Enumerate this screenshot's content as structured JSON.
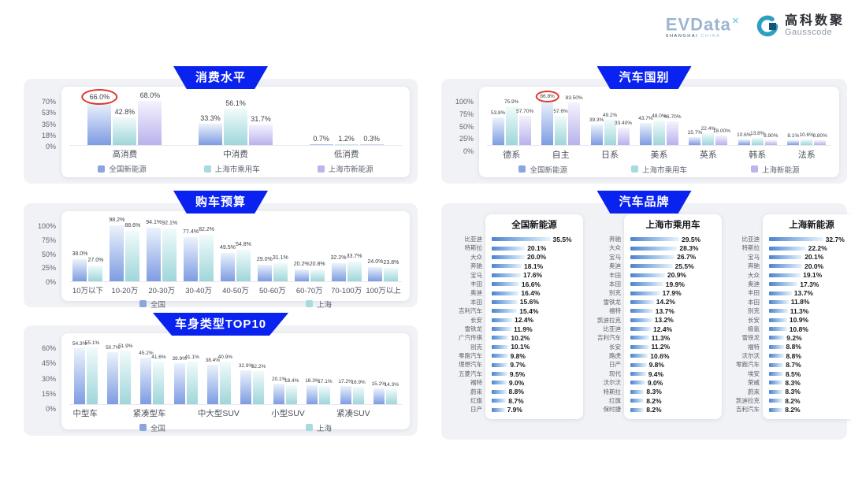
{
  "header": {
    "evdata_logo": "EVData",
    "evdata_sup": "✕",
    "evdata_sub_1": "SHANGHAI",
    "evdata_sub_2": "CHINA",
    "gausscode_cn": "高科数聚",
    "gausscode_en": "Gausscode"
  },
  "palette": {
    "badge_blue": "#0a22f0",
    "annotation_red": "#e0372c",
    "hbar_from": "#4d82cc",
    "hbar_to": "#e9f4fd",
    "blue": {
      "lo": "#7e9ce2",
      "hi": "#ecf3fc",
      "mid": "#8aa6de"
    },
    "teal": {
      "lo": "#9fd6da",
      "hi": "#f1fbfb",
      "mid": "#a9dade"
    },
    "purple": {
      "lo": "#b9b2ec",
      "hi": "#f5f3fe",
      "mid": "#bcb5ec"
    }
  },
  "chart_data": [
    {
      "type": "bar",
      "title": "消费水平",
      "categories": [
        "高消费",
        "中消费",
        "低消费"
      ],
      "ymax": 70,
      "yticks": [
        "70%",
        "53%",
        "35%",
        "18%",
        "0%"
      ],
      "legend_position": "bottom",
      "series": [
        {
          "name": "全国新能源",
          "palette": "blue",
          "dp": 1,
          "values": [
            66.0,
            33.3,
            0.7
          ]
        },
        {
          "name": "上海市乘用车",
          "palette": "teal",
          "dp": 1,
          "values": [
            42.8,
            56.1,
            1.2
          ]
        },
        {
          "name": "上海市新能源",
          "palette": "purple",
          "dp": 1,
          "values": [
            68.0,
            31.7,
            0.3
          ]
        }
      ],
      "annotations": [
        {
          "type": "red-circle",
          "series": 0,
          "category": 0
        }
      ]
    },
    {
      "type": "bar",
      "title": "汽车国别",
      "categories": [
        "德系",
        "自主",
        "日系",
        "美系",
        "英系",
        "韩系",
        "法系"
      ],
      "ymax": 100,
      "yticks": [
        "100%",
        "75%",
        "50%",
        "25%",
        "0%"
      ],
      "legend_position": "bottom",
      "series": [
        {
          "name": "全国新能源",
          "palette": "blue",
          "dp": 1,
          "values": [
            53.8,
            86.8,
            39.3,
            43.7,
            15.7,
            10.6,
            8.1
          ]
        },
        {
          "name": "上海市乘用车",
          "palette": "teal",
          "dp": 1,
          "values": [
            75.9,
            57.6,
            49.2,
            48.0,
            22.4,
            13.8,
            10.6
          ]
        },
        {
          "name": "上海新能源",
          "palette": "purple",
          "dp": 2,
          "values": [
            57.7,
            83.5,
            33.4,
            46.7,
            18.0,
            8.9,
            8.8
          ]
        }
      ],
      "annotations": [
        {
          "type": "red-circle",
          "series": 0,
          "category": 1
        }
      ]
    },
    {
      "type": "bar",
      "title": "购车预算",
      "categories": [
        "10万以下",
        "10-20万",
        "20-30万",
        "30-40万",
        "40-50万",
        "50-60万",
        "60-70万",
        "70-100万",
        "100万以上"
      ],
      "ymax": 100,
      "yticks": [
        "100%",
        "75%",
        "50%",
        "25%",
        "0%"
      ],
      "legend_position": "bottom",
      "series": [
        {
          "name": "全国",
          "palette": "blue",
          "dp": 1,
          "values": [
            38.0,
            98.2,
            94.1,
            77.4,
            49.5,
            29.0,
            20.2,
            32.2,
            24.0
          ]
        },
        {
          "name": "上海",
          "palette": "teal",
          "dp": 1,
          "values": [
            27.0,
            88.6,
            92.1,
            82.2,
            54.8,
            31.1,
            20.8,
            33.7,
            23.8
          ]
        }
      ],
      "annotations": []
    },
    {
      "type": "bar",
      "title": "车身类型TOP10",
      "categories": [
        "中型车",
        "",
        "紧凑型车",
        "",
        "中大型SUV",
        "",
        "小型SUV",
        "",
        "紧凑SUV",
        ""
      ],
      "ymax": 60,
      "yticks": [
        "60%",
        "45%",
        "30%",
        "15%",
        "0%"
      ],
      "legend_position": "bottom",
      "series": [
        {
          "name": "全国",
          "palette": "blue",
          "dp": 1,
          "values": [
            54.3,
            50.7,
            45.2,
            39.9,
            38.4,
            32.9,
            20.1,
            18.3,
            17.2,
            15.2
          ]
        },
        {
          "name": "上海",
          "palette": "teal",
          "dp": 1,
          "values": [
            55.1,
            51.9,
            41.6,
            41.1,
            40.9,
            32.2,
            18.4,
            17.1,
            16.9,
            14.3
          ]
        }
      ],
      "annotations": []
    },
    {
      "type": "bar-horizontal-triple",
      "title": "汽车品牌",
      "lists": [
        {
          "title": "全国新能源",
          "items": [
            [
              "比亚迪",
              35.5
            ],
            [
              "特斯拉",
              20.1
            ],
            [
              "大众",
              20.0
            ],
            [
              "奔驰",
              18.1
            ],
            [
              "宝马",
              17.6
            ],
            [
              "丰田",
              16.6
            ],
            [
              "奥迪",
              16.4
            ],
            [
              "本田",
              15.6
            ],
            [
              "吉利汽车",
              15.4
            ],
            [
              "长安",
              12.4
            ],
            [
              "雪铁龙",
              11.9
            ],
            [
              "广汽传祺",
              10.2
            ],
            [
              "别克",
              10.1
            ],
            [
              "零跑汽车",
              9.8
            ],
            [
              "理想汽车",
              9.7
            ],
            [
              "五菱汽车",
              9.5
            ],
            [
              "福特",
              9.0
            ],
            [
              "蔚来",
              8.8
            ],
            [
              "红旗",
              8.7
            ],
            [
              "日产",
              7.9
            ]
          ]
        },
        {
          "title": "上海市乘用车",
          "items": [
            [
              "奔驰",
              29.5
            ],
            [
              "大众",
              28.3
            ],
            [
              "宝马",
              26.7
            ],
            [
              "奥迪",
              25.5
            ],
            [
              "丰田",
              20.9
            ],
            [
              "本田",
              19.9
            ],
            [
              "别克",
              17.9
            ],
            [
              "雪铁龙",
              14.2
            ],
            [
              "福特",
              13.7
            ],
            [
              "凯迪拉克",
              13.2
            ],
            [
              "比亚迪",
              12.4
            ],
            [
              "吉利汽车",
              11.3
            ],
            [
              "长安",
              11.2
            ],
            [
              "路虎",
              10.6
            ],
            [
              "日产",
              9.8
            ],
            [
              "现代",
              9.4
            ],
            [
              "沃尔沃",
              9.0
            ],
            [
              "特斯拉",
              8.3
            ],
            [
              "红旗",
              8.2
            ],
            [
              "保时捷",
              8.2
            ]
          ]
        },
        {
          "title": "上海新能源",
          "items": [
            [
              "比亚迪",
              32.7
            ],
            [
              "特斯拉",
              22.2
            ],
            [
              "宝马",
              20.1
            ],
            [
              "奔驰",
              20.0
            ],
            [
              "大众",
              19.1
            ],
            [
              "奥迪",
              17.3
            ],
            [
              "丰田",
              13.7
            ],
            [
              "本田",
              11.8
            ],
            [
              "别克",
              11.3
            ],
            [
              "长安",
              10.9
            ],
            [
              "极氪",
              10.8
            ],
            [
              "雪铁龙",
              9.2
            ],
            [
              "福特",
              8.8
            ],
            [
              "沃尔沃",
              8.8
            ],
            [
              "零跑汽车",
              8.7
            ],
            [
              "埃安",
              8.5
            ],
            [
              "荣威",
              8.3
            ],
            [
              "蔚来",
              8.3
            ],
            [
              "凯迪拉克",
              8.2
            ],
            [
              "吉利汽车",
              8.2
            ]
          ]
        }
      ]
    }
  ]
}
